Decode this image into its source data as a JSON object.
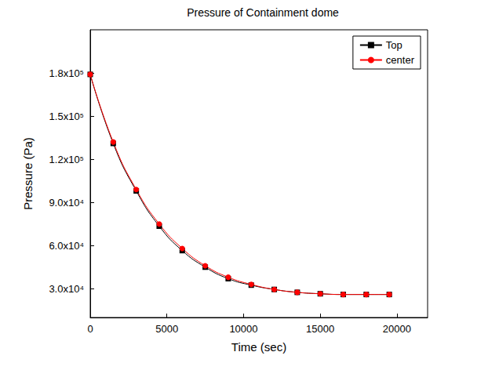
{
  "chart_data": {
    "type": "line",
    "title": "Pressure of Containment dome",
    "x_label": "Time (sec)",
    "y_label": "Pressure (Pa)",
    "x": [
      0,
      1500,
      3000,
      4500,
      6000,
      7500,
      9000,
      10500,
      12000,
      13500,
      15000,
      16500,
      18000,
      19500
    ],
    "series": [
      {
        "name": "Top",
        "color": "#000000",
        "marker": "square",
        "line_style": "solid",
        "values": [
          179000,
          131000,
          98000,
          73500,
          56500,
          45000,
          37000,
          32500,
          29500,
          27500,
          26500,
          26000,
          26000,
          26000
        ]
      },
      {
        "name": "center",
        "color": "#ff0000",
        "marker": "circle",
        "line_style": "solid",
        "values": [
          179000,
          132000,
          99000,
          75000,
          58000,
          46000,
          38000,
          33000,
          29500,
          27500,
          26500,
          26000,
          26000,
          26000
        ]
      }
    ],
    "xlim": [
      0,
      22000
    ],
    "xticks": [
      0,
      5000,
      10000,
      15000,
      20000
    ],
    "ylim": [
      10000,
      210000
    ],
    "yticks": [
      {
        "value": 30000,
        "label": "3.0x10⁴"
      },
      {
        "value": 60000,
        "label": "6.0x10⁴"
      },
      {
        "value": 90000,
        "label": "9.0x10⁴"
      },
      {
        "value": 120000,
        "label": "1.2x10⁵"
      },
      {
        "value": 150000,
        "label": "1.5x10⁵"
      },
      {
        "value": 180000,
        "label": "1.8x10⁵"
      }
    ],
    "grid": false,
    "legend": "upper right"
  }
}
